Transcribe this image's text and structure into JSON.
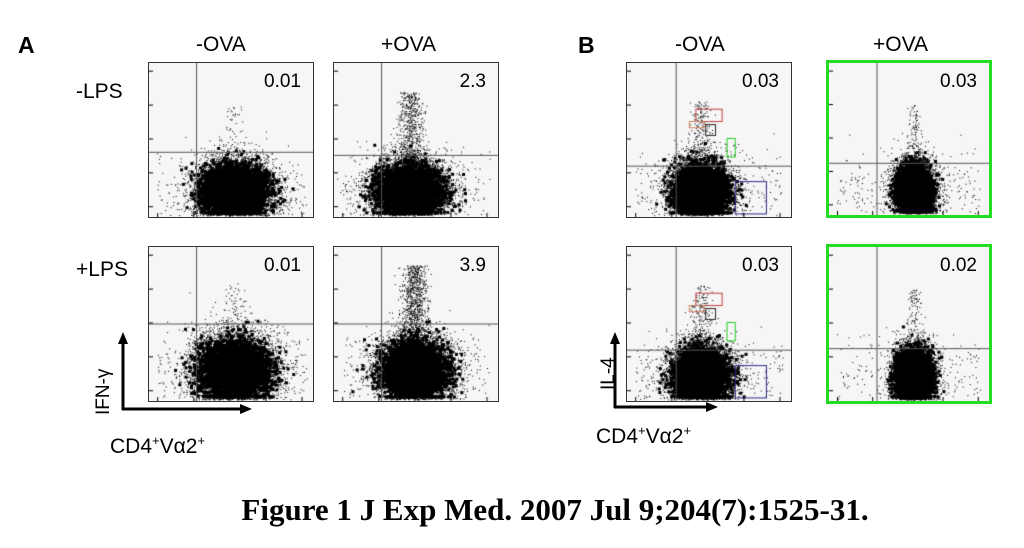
{
  "figure": {
    "panel_a_letter": "A",
    "panel_b_letter": "B",
    "col_labels": [
      "-OVA",
      "+OVA"
    ],
    "row_labels": [
      "-LPS",
      "+LPS"
    ],
    "a_y_axis": "IFN-γ",
    "b_y_axis": "IL-4",
    "x_axis_main": "CD4",
    "x_axis_sup1": "+",
    "x_axis_mid": "Vα2",
    "x_axis_sup2": "+",
    "caption": "Figure 1 J Exp Med. 2007 Jul 9;204(7):1525-31."
  },
  "colors": {
    "highlight_border": "#22dd22",
    "gate_red": "#c04040",
    "gate_orange": "#d08060",
    "gate_black": "#222222",
    "gate_green": "#22cc22",
    "gate_blue": "#2a2a8a"
  },
  "chart_data": [
    {
      "type": "scatter",
      "panel": "A",
      "column": "-OVA",
      "row": "-LPS",
      "xlabel": "CD4+Vα2+",
      "ylabel": "IFN-γ",
      "quadrant_upper_right_percent": "0.01"
    },
    {
      "type": "scatter",
      "panel": "A",
      "column": "+OVA",
      "row": "-LPS",
      "xlabel": "CD4+Vα2+",
      "ylabel": "IFN-γ",
      "quadrant_upper_right_percent": "2.3"
    },
    {
      "type": "scatter",
      "panel": "A",
      "column": "-OVA",
      "row": "+LPS",
      "xlabel": "CD4+Vα2+",
      "ylabel": "IFN-γ",
      "quadrant_upper_right_percent": "0.01"
    },
    {
      "type": "scatter",
      "panel": "A",
      "column": "+OVA",
      "row": "+LPS",
      "xlabel": "CD4+Vα2+",
      "ylabel": "IFN-γ",
      "quadrant_upper_right_percent": "3.9"
    },
    {
      "type": "scatter",
      "panel": "B",
      "column": "-OVA",
      "row": "-LPS",
      "xlabel": "CD4+Vα2+",
      "ylabel": "IL-4",
      "quadrant_upper_right_percent": "0.03"
    },
    {
      "type": "scatter",
      "panel": "B",
      "column": "+OVA",
      "row": "-LPS",
      "xlabel": "CD4+Vα2+",
      "ylabel": "IL-4",
      "quadrant_upper_right_percent": "0.03"
    },
    {
      "type": "scatter",
      "panel": "B",
      "column": "-OVA",
      "row": "+LPS",
      "xlabel": "CD4+Vα2+",
      "ylabel": "IL-4",
      "quadrant_upper_right_percent": "0.03"
    },
    {
      "type": "scatter",
      "panel": "B",
      "column": "+OVA",
      "row": "+LPS",
      "xlabel": "CD4+Vα2+",
      "ylabel": "IL-4",
      "quadrant_upper_right_percent": "0.02"
    }
  ]
}
